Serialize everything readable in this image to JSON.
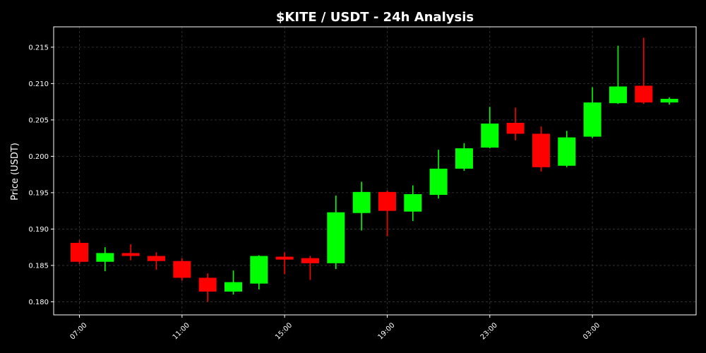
{
  "chart_data": {
    "type": "candlestick",
    "title": "$KITE / USDT - 24h Analysis",
    "ylabel": "Price (USDT)",
    "xlabel": "",
    "ylim": [
      0.1782,
      0.2178
    ],
    "yticks": [
      "0.180",
      "0.185",
      "0.190",
      "0.195",
      "0.200",
      "0.205",
      "0.210",
      "0.215"
    ],
    "xticks": [
      {
        "label": "07:00",
        "at_index": 0
      },
      {
        "label": "11:00",
        "at_index": 4
      },
      {
        "label": "15:00",
        "at_index": 8
      },
      {
        "label": "19:00",
        "at_index": 12
      },
      {
        "label": "23:00",
        "at_index": 16
      },
      {
        "label": "03:00",
        "at_index": 20
      }
    ],
    "grid": true,
    "colors": {
      "up": "#00ff00",
      "down": "#ff0000",
      "background": "#000000",
      "text": "#ffffff"
    },
    "candles": [
      {
        "time": "07:00",
        "open": 0.1881,
        "high": 0.1885,
        "low": 0.1852,
        "close": 0.1855
      },
      {
        "time": "08:00",
        "open": 0.1855,
        "high": 0.1875,
        "low": 0.1842,
        "close": 0.1867
      },
      {
        "time": "09:00",
        "open": 0.1867,
        "high": 0.1879,
        "low": 0.1857,
        "close": 0.1863
      },
      {
        "time": "10:00",
        "open": 0.1863,
        "high": 0.1868,
        "low": 0.1844,
        "close": 0.1856
      },
      {
        "time": "11:00",
        "open": 0.1856,
        "high": 0.186,
        "low": 0.1829,
        "close": 0.1833
      },
      {
        "time": "12:00",
        "open": 0.1833,
        "high": 0.1839,
        "low": 0.18,
        "close": 0.1814
      },
      {
        "time": "13:00",
        "open": 0.1814,
        "high": 0.1843,
        "low": 0.181,
        "close": 0.1827
      },
      {
        "time": "14:00",
        "open": 0.1825,
        "high": 0.1864,
        "low": 0.1817,
        "close": 0.1863
      },
      {
        "time": "15:00",
        "open": 0.1862,
        "high": 0.1868,
        "low": 0.1838,
        "close": 0.1858
      },
      {
        "time": "16:00",
        "open": 0.186,
        "high": 0.1863,
        "low": 0.183,
        "close": 0.1853
      },
      {
        "time": "17:00",
        "open": 0.1853,
        "high": 0.1946,
        "low": 0.1845,
        "close": 0.1923
      },
      {
        "time": "18:00",
        "open": 0.1922,
        "high": 0.1965,
        "low": 0.1898,
        "close": 0.1951
      },
      {
        "time": "19:00",
        "open": 0.1951,
        "high": 0.1953,
        "low": 0.189,
        "close": 0.1925
      },
      {
        "time": "20:00",
        "open": 0.1924,
        "high": 0.196,
        "low": 0.1911,
        "close": 0.1948
      },
      {
        "time": "21:00",
        "open": 0.1947,
        "high": 0.2009,
        "low": 0.1942,
        "close": 0.1983
      },
      {
        "time": "22:00",
        "open": 0.1983,
        "high": 0.2018,
        "low": 0.198,
        "close": 0.2011
      },
      {
        "time": "23:00",
        "open": 0.2012,
        "high": 0.2068,
        "low": 0.2011,
        "close": 0.2045
      },
      {
        "time": "00:00",
        "open": 0.2046,
        "high": 0.2067,
        "low": 0.2022,
        "close": 0.2031
      },
      {
        "time": "01:00",
        "open": 0.2031,
        "high": 0.2041,
        "low": 0.1979,
        "close": 0.1985
      },
      {
        "time": "02:00",
        "open": 0.1987,
        "high": 0.2035,
        "low": 0.1985,
        "close": 0.2026
      },
      {
        "time": "03:00",
        "open": 0.2027,
        "high": 0.2095,
        "low": 0.2025,
        "close": 0.2074
      },
      {
        "time": "04:00",
        "open": 0.2073,
        "high": 0.2152,
        "low": 0.2072,
        "close": 0.2096
      },
      {
        "time": "05:00",
        "open": 0.2097,
        "high": 0.2163,
        "low": 0.2072,
        "close": 0.2074
      },
      {
        "time": "06:00",
        "open": 0.2074,
        "high": 0.2081,
        "low": 0.2071,
        "close": 0.2079
      }
    ]
  }
}
